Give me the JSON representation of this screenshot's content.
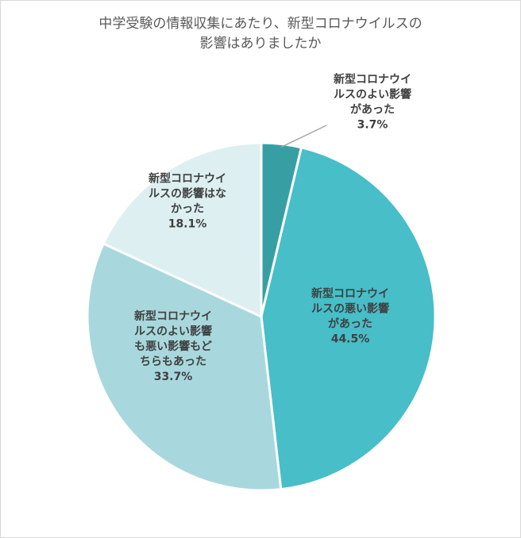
{
  "chart_data": {
    "type": "pie",
    "title_lines": [
      "中学受験の情報収集にあたり、新型コロナウイルスの",
      "影響はありましたか"
    ],
    "slices": [
      {
        "label_lines": [
          "新型コロナウイ",
          "ルスのよい影響",
          "があった"
        ],
        "value": 3.7,
        "value_label": "3.7%",
        "color": "#379fa4"
      },
      {
        "label_lines": [
          "新型コロナウイ",
          "ルスの悪い影響",
          "があった"
        ],
        "value": 44.5,
        "value_label": "44.5%",
        "color": "#47bec8"
      },
      {
        "label_lines": [
          "新型コロナウイ",
          "ルスのよい影響",
          "も悪い影響もど",
          "ちらもあった"
        ],
        "value": 33.7,
        "value_label": "33.7%",
        "color": "#a8d8dd"
      },
      {
        "label_lines": [
          "新型コロナウイ",
          "ルスの影響はな",
          "かった"
        ],
        "value": 18.1,
        "value_label": "18.1%",
        "color": "#ddeff1"
      }
    ],
    "start_angle_deg": 0,
    "direction": "clockwise"
  }
}
